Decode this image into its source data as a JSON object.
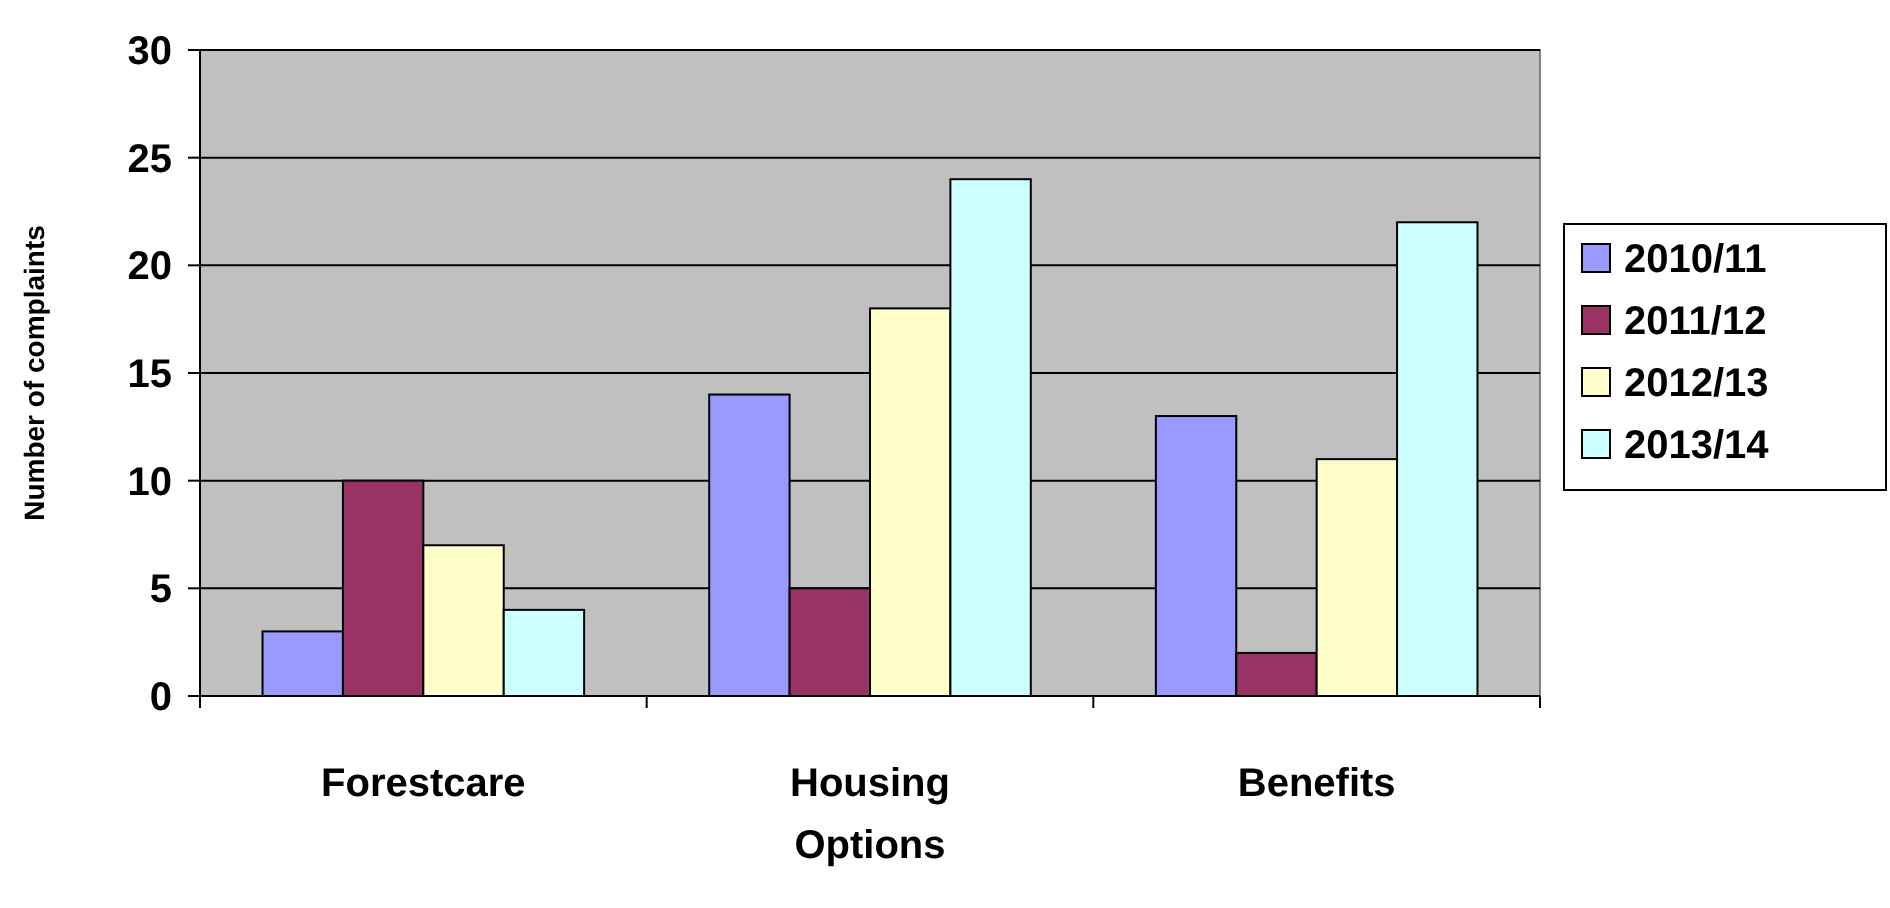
{
  "chart_data": {
    "type": "bar",
    "ylabel": "Number of complaints",
    "categories": [
      "Forestcare",
      "Housing Options",
      "Benefits"
    ],
    "series": [
      {
        "name": "2010/11",
        "color": "#9999ff",
        "values": [
          3,
          14,
          13
        ]
      },
      {
        "name": "2011/12",
        "color": "#993366",
        "values": [
          10,
          5,
          2
        ]
      },
      {
        "name": "2012/13",
        "color": "#ffffcc",
        "values": [
          7,
          18,
          11
        ]
      },
      {
        "name": "2013/14",
        "color": "#ccffff",
        "values": [
          4,
          24,
          22
        ]
      }
    ],
    "ylim": [
      0,
      30
    ],
    "yticks": [
      0,
      5,
      10,
      15,
      20,
      25,
      30
    ],
    "grid": "y",
    "legend": "right"
  }
}
